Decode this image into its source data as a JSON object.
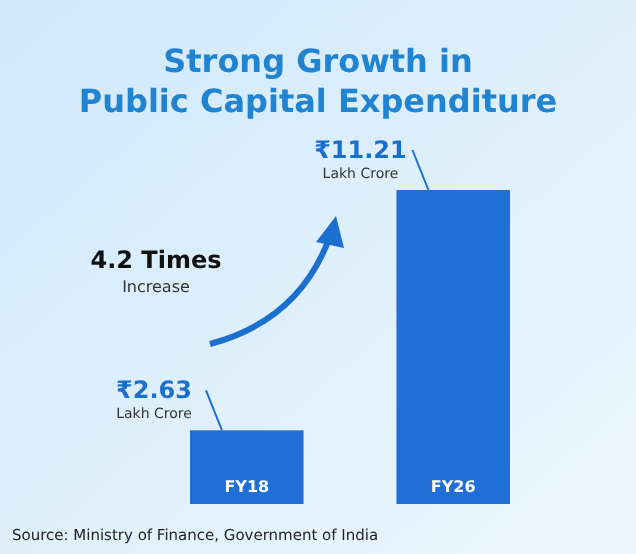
{
  "chart_data": {
    "type": "bar",
    "title": "Strong Growth in Public Capital Expenditure",
    "categories": [
      "FY18",
      "FY26"
    ],
    "values": [
      2.63,
      11.21
    ],
    "value_labels": [
      "₹2.63 Lakh Crore",
      "₹11.21 Lakh Crore"
    ],
    "color": "#1f6fd6",
    "grid": false,
    "legend": false,
    "annotations": [
      "4.2 Times",
      "Increase",
      "Source: Ministry of Finance, Government of India"
    ]
  }
}
